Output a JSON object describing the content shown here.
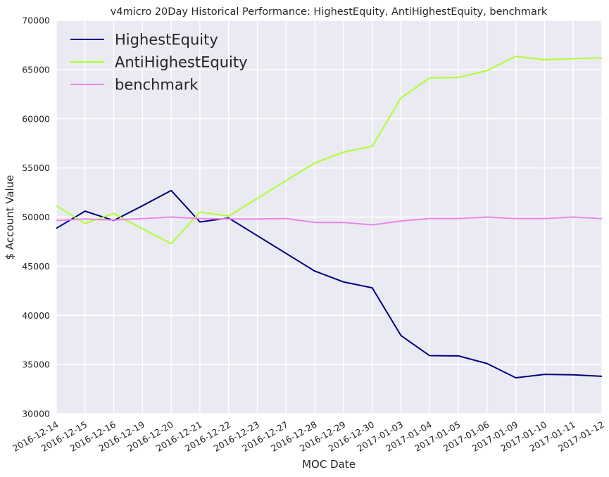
{
  "chart_data": {
    "type": "line",
    "title": "v4micro 20Day Historical Performance: HighestEquity, AntiHighestEquity, benchmark",
    "xlabel": "MOC Date",
    "ylabel": "$ Account Value",
    "ylim": [
      30000,
      70000
    ],
    "yticks": [
      30000,
      35000,
      40000,
      45000,
      50000,
      55000,
      60000,
      65000,
      70000
    ],
    "grid": true,
    "legend_position": "top-left",
    "categories": [
      "2016-12-14",
      "2016-12-15",
      "2016-12-16",
      "2016-12-19",
      "2016-12-20",
      "2016-12-21",
      "2016-12-22",
      "2016-12-23",
      "2016-12-27",
      "2016-12-28",
      "2016-12-29",
      "2016-12-30",
      "2017-01-03",
      "2017-01-04",
      "2017-01-05",
      "2017-01-06",
      "2017-01-09",
      "2017-01-10",
      "2017-01-11",
      "2017-01-12"
    ],
    "series": [
      {
        "name": "HighestEquity",
        "color": "#000080",
        "values": [
          48850,
          50600,
          49650,
          51150,
          52700,
          49500,
          49900,
          48100,
          46300,
          44500,
          43400,
          42800,
          37950,
          35900,
          35880,
          35100,
          33650,
          34000,
          33950,
          33800
        ]
      },
      {
        "name": "AntiHighestEquity",
        "color": "#ADFF2F",
        "values": [
          51150,
          49350,
          50350,
          48800,
          47300,
          50500,
          50100,
          51900,
          53700,
          55500,
          56600,
          57200,
          62100,
          64150,
          64200,
          64900,
          66350,
          66000,
          66100,
          66200
        ]
      },
      {
        "name": "benchmark",
        "color": "#EE82EE",
        "values": [
          49650,
          49800,
          49700,
          49850,
          50000,
          49850,
          49800,
          49800,
          49850,
          49450,
          49450,
          49200,
          49600,
          49850,
          49850,
          50000,
          49850,
          49850,
          50000,
          49850
        ]
      }
    ]
  }
}
